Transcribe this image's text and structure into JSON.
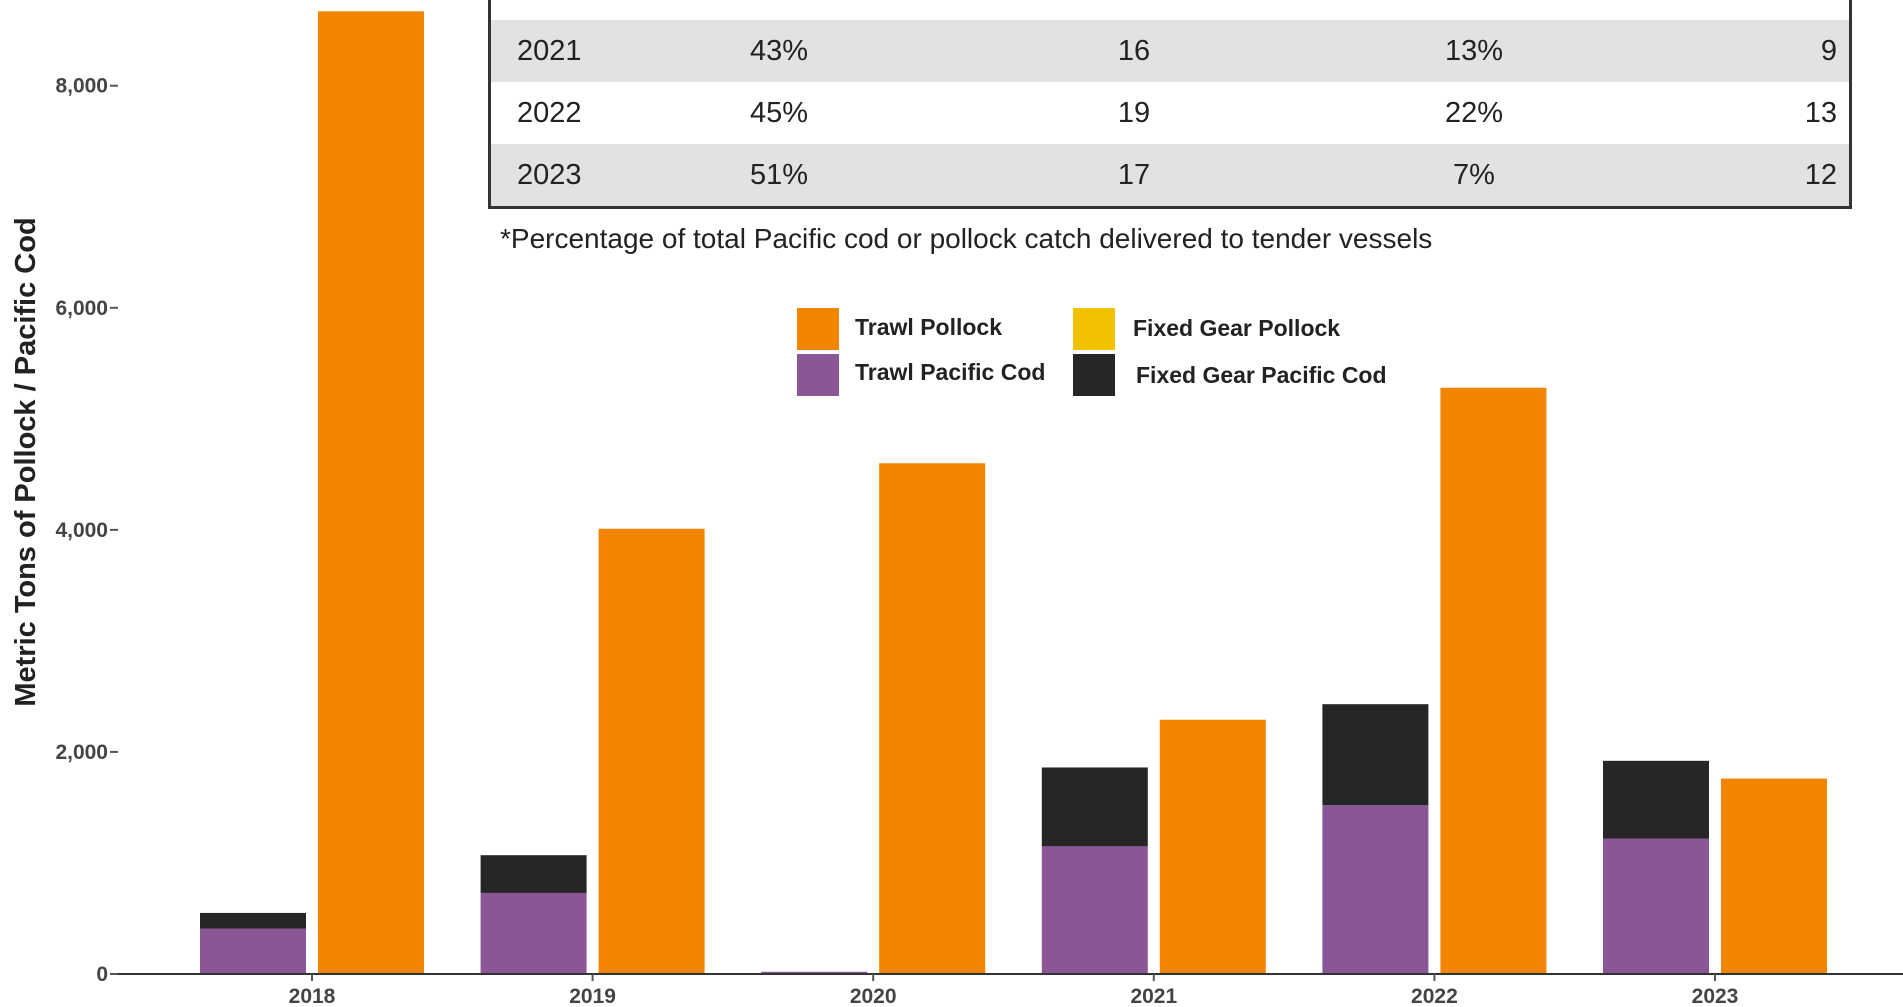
{
  "chart_data": {
    "type": "bar",
    "ylabel": "Metric Tons of Pollock / Pacific Cod",
    "ylim": [
      0,
      8700
    ],
    "yticks": [
      "0",
      "2,000",
      "4,000",
      "6,000",
      "8,000"
    ],
    "ytick_values": [
      0,
      2000,
      4000,
      6000,
      8000
    ],
    "categories": [
      "2018",
      "2019",
      "2020",
      "2021",
      "2022",
      "2023"
    ],
    "series": [
      {
        "name": "Trawl Pacific Cod",
        "stack": "cod",
        "color": "#8a5696",
        "values": [
          410,
          730,
          20,
          1150,
          1520,
          1220
        ]
      },
      {
        "name": "Fixed Gear Pacific Cod",
        "stack": "cod",
        "color": "#262626",
        "values": [
          140,
          340,
          0,
          710,
          910,
          700
        ]
      },
      {
        "name": "Trawl Pollock",
        "stack": "pollock",
        "color": "#f28500",
        "values": [
          8670,
          4010,
          4600,
          2290,
          5280,
          1760
        ]
      },
      {
        "name": "Fixed Gear Pollock",
        "stack": "pollock",
        "color": "#f2c200",
        "values": [
          0,
          0,
          0,
          0,
          0,
          0
        ]
      }
    ],
    "legend": {
      "placement": "top-center",
      "items": [
        {
          "label": "Trawl Pollock",
          "color": "#f28500"
        },
        {
          "label": "Trawl Pacific Cod",
          "color": "#8a5696"
        },
        {
          "label": "Fixed Gear Pollock",
          "color": "#f2c200"
        },
        {
          "label": "Fixed Gear Pacific Cod",
          "color": "#262626"
        }
      ]
    },
    "grid": false
  },
  "table": {
    "rows": [
      {
        "cells": [
          "",
          "",
          "",
          "",
          ""
        ],
        "shade": false
      },
      {
        "cells": [
          "2021",
          "43%",
          "16",
          "13%",
          "9"
        ],
        "shade": true
      },
      {
        "cells": [
          "2022",
          "45%",
          "19",
          "22%",
          "13"
        ],
        "shade": false
      },
      {
        "cells": [
          "2023",
          "51%",
          "17",
          "7%",
          "12"
        ],
        "shade": true
      }
    ],
    "footnote": "*Percentage of total Pacific cod or pollock catch delivered to tender vessels"
  }
}
